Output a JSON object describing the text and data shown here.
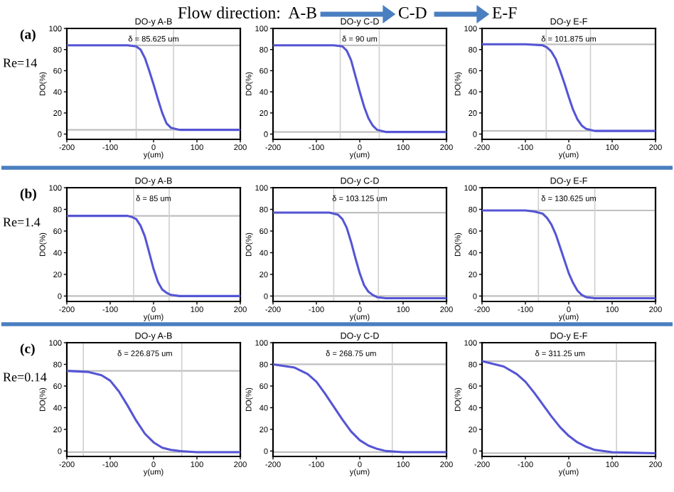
{
  "chart_data": [
    {
      "type": "line",
      "title": "DO-y A-B",
      "xlabel": "y(um)",
      "ylabel": "DO(%)",
      "color": "#5555d5",
      "xlim": [
        -200,
        200
      ],
      "ylim": [
        -5,
        100
      ],
      "xticks": [
        -200,
        -100,
        0,
        100,
        200
      ],
      "yticks": [
        0,
        20,
        40,
        60,
        80,
        100
      ],
      "x": [
        -200,
        -100,
        -60,
        -40,
        -30,
        -20,
        -10,
        0,
        10,
        20,
        30,
        40,
        60,
        100,
        200
      ],
      "values": [
        84,
        84,
        84,
        83,
        80,
        72,
        60,
        47,
        33,
        20,
        10,
        6,
        4,
        4,
        4
      ],
      "ref_lines": [
        {
          "axis": "y",
          "value": 84
        },
        {
          "axis": "y",
          "value": 4
        },
        {
          "axis": "x",
          "value": -40
        },
        {
          "axis": "x",
          "value": 46
        }
      ],
      "annotations": [
        "δ = 85.625 um",
        "Flow direction:  A-B",
        "C-D",
        "E-F",
        "(a)",
        "Re=14"
      ]
    },
    {
      "type": "line",
      "title": "DO-y C-D",
      "xlabel": "y(um)",
      "ylabel": "DO(%)",
      "color": "#5555d5",
      "xlim": [
        -200,
        200
      ],
      "ylim": [
        -5,
        100
      ],
      "xticks": [
        -200,
        -100,
        0,
        100,
        200
      ],
      "yticks": [
        0,
        20,
        40,
        60,
        80,
        100
      ],
      "x": [
        -200,
        -100,
        -60,
        -40,
        -30,
        -20,
        -10,
        0,
        10,
        20,
        30,
        40,
        60,
        100,
        200
      ],
      "values": [
        84,
        84,
        84,
        83,
        79,
        70,
        55,
        40,
        26,
        15,
        8,
        4,
        2,
        2,
        2
      ],
      "ref_lines": [
        {
          "axis": "y",
          "value": 84
        },
        {
          "axis": "y",
          "value": 2
        },
        {
          "axis": "x",
          "value": -45
        },
        {
          "axis": "x",
          "value": 45
        }
      ],
      "annotations": [
        "δ = 90 um"
      ]
    },
    {
      "type": "line",
      "title": "DO-y E-F",
      "xlabel": "y(um)",
      "ylabel": "DO(%)",
      "color": "#5555d5",
      "xlim": [
        -200,
        200
      ],
      "ylim": [
        -5,
        100
      ],
      "xticks": [
        -200,
        -100,
        0,
        100,
        200
      ],
      "yticks": [
        0,
        20,
        40,
        60,
        80,
        100
      ],
      "x": [
        -200,
        -100,
        -60,
        -50,
        -40,
        -30,
        -20,
        -10,
        0,
        10,
        20,
        30,
        40,
        60,
        100,
        200
      ],
      "values": [
        85,
        85,
        84,
        82,
        78,
        71,
        60,
        48,
        35,
        23,
        14,
        8,
        5,
        3,
        3,
        3
      ],
      "ref_lines": [
        {
          "axis": "y",
          "value": 85
        },
        {
          "axis": "y",
          "value": 3
        },
        {
          "axis": "x",
          "value": -52
        },
        {
          "axis": "x",
          "value": 50
        }
      ],
      "annotations": [
        "δ = 101.875 um"
      ]
    },
    {
      "type": "line",
      "title": "DO-y A-B",
      "xlabel": "y(um)",
      "ylabel": "DO(%)",
      "color": "#5555d5",
      "xlim": [
        -200,
        200
      ],
      "ylim": [
        -5,
        100
      ],
      "xticks": [
        -200,
        -100,
        0,
        100,
        200
      ],
      "yticks": [
        0,
        20,
        40,
        60,
        80,
        100
      ],
      "x": [
        -200,
        -100,
        -60,
        -50,
        -40,
        -30,
        -20,
        -10,
        0,
        10,
        20,
        30,
        40,
        60,
        100,
        200
      ],
      "values": [
        74,
        74,
        74,
        73,
        71,
        65,
        55,
        40,
        25,
        13,
        6,
        3,
        1,
        0,
        0,
        0
      ],
      "ref_lines": [
        {
          "axis": "y",
          "value": 74
        },
        {
          "axis": "y",
          "value": 0
        },
        {
          "axis": "x",
          "value": -46
        },
        {
          "axis": "x",
          "value": 36
        }
      ],
      "annotations": [
        "δ = 85 um",
        "(b)",
        "Re=1.4"
      ]
    },
    {
      "type": "line",
      "title": "DO-y C-D",
      "xlabel": "y(um)",
      "ylabel": "DO(%)",
      "color": "#5555d5",
      "xlim": [
        -200,
        200
      ],
      "ylim": [
        -5,
        100
      ],
      "xticks": [
        -200,
        -100,
        0,
        100,
        200
      ],
      "yticks": [
        0,
        20,
        40,
        60,
        80,
        100
      ],
      "x": [
        -200,
        -100,
        -70,
        -50,
        -40,
        -30,
        -20,
        -10,
        0,
        10,
        20,
        30,
        40,
        60,
        100,
        200
      ],
      "values": [
        77,
        77,
        77,
        75,
        71,
        63,
        50,
        35,
        21,
        10,
        4,
        1,
        -1,
        -2,
        -2,
        -2
      ],
      "ref_lines": [
        {
          "axis": "y",
          "value": 77
        },
        {
          "axis": "y",
          "value": 0
        },
        {
          "axis": "x",
          "value": -60
        },
        {
          "axis": "x",
          "value": 43
        }
      ],
      "annotations": [
        "δ = 103.125 um"
      ]
    },
    {
      "type": "line",
      "title": "DO-y E-F",
      "xlabel": "y(um)",
      "ylabel": "DO(%)",
      "color": "#5555d5",
      "xlim": [
        -200,
        200
      ],
      "ylim": [
        -5,
        100
      ],
      "xticks": [
        -200,
        -100,
        0,
        100,
        200
      ],
      "yticks": [
        0,
        20,
        40,
        60,
        80,
        100
      ],
      "x": [
        -200,
        -100,
        -80,
        -60,
        -50,
        -40,
        -30,
        -20,
        -10,
        0,
        10,
        20,
        30,
        40,
        60,
        100,
        200
      ],
      "values": [
        79,
        79,
        78,
        76,
        72,
        66,
        57,
        45,
        33,
        21,
        12,
        5,
        1,
        -1,
        -2,
        -2,
        -2
      ],
      "ref_lines": [
        {
          "axis": "y",
          "value": 79
        },
        {
          "axis": "y",
          "value": 0
        },
        {
          "axis": "x",
          "value": -70
        },
        {
          "axis": "x",
          "value": 60
        }
      ],
      "annotations": [
        "δ = 130.625 um"
      ]
    },
    {
      "type": "line",
      "title": "DO-y A-B",
      "xlabel": "y(um)",
      "ylabel": "DO(%)",
      "color": "#5555d5",
      "xlim": [
        -200,
        200
      ],
      "ylim": [
        -5,
        100
      ],
      "xticks": [
        -200,
        -100,
        0,
        100,
        200
      ],
      "yticks": [
        0,
        20,
        40,
        60,
        80,
        100
      ],
      "x": [
        -200,
        -150,
        -120,
        -100,
        -80,
        -60,
        -40,
        -20,
        0,
        20,
        40,
        60,
        100,
        200
      ],
      "values": [
        74,
        73,
        70,
        65,
        55,
        42,
        28,
        16,
        8,
        3,
        1,
        0,
        -1,
        -1
      ],
      "ref_lines": [
        {
          "axis": "y",
          "value": 74
        },
        {
          "axis": "y",
          "value": -1
        },
        {
          "axis": "x",
          "value": -162
        },
        {
          "axis": "x",
          "value": 65
        }
      ],
      "annotations": [
        "δ = 226.875 um",
        "(c)",
        "Re=0.14"
      ]
    },
    {
      "type": "line",
      "title": "DO-y C-D",
      "xlabel": "y(um)",
      "ylabel": "DO(%)",
      "color": "#5555d5",
      "xlim": [
        -200,
        200
      ],
      "ylim": [
        -5,
        100
      ],
      "xticks": [
        -200,
        -100,
        0,
        100,
        200
      ],
      "yticks": [
        0,
        20,
        40,
        60,
        80,
        100
      ],
      "x": [
        -200,
        -150,
        -120,
        -100,
        -80,
        -60,
        -40,
        -20,
        0,
        20,
        40,
        60,
        100,
        200
      ],
      "values": [
        80,
        77,
        71,
        64,
        53,
        41,
        29,
        18,
        10,
        5,
        2,
        0,
        -1,
        -1
      ],
      "ref_lines": [
        {
          "axis": "y",
          "value": 80
        },
        {
          "axis": "y",
          "value": -1
        },
        {
          "axis": "x",
          "value": 75
        }
      ],
      "annotations": [
        "δ = 268.75 um"
      ]
    },
    {
      "type": "line",
      "title": "DO-y E-F",
      "xlabel": "y(um)",
      "ylabel": "DO(%)",
      "color": "#5555d5",
      "xlim": [
        -200,
        200
      ],
      "ylim": [
        -5,
        100
      ],
      "xticks": [
        -200,
        -100,
        0,
        100,
        200
      ],
      "yticks": [
        0,
        20,
        40,
        60,
        80,
        100
      ],
      "x": [
        -200,
        -150,
        -120,
        -100,
        -80,
        -60,
        -40,
        -20,
        0,
        20,
        40,
        60,
        100,
        200
      ],
      "values": [
        83,
        78,
        71,
        64,
        54,
        43,
        32,
        22,
        14,
        8,
        4,
        1,
        -1,
        -2
      ],
      "ref_lines": [
        {
          "axis": "y",
          "value": 83
        },
        {
          "axis": "y",
          "value": -2
        },
        {
          "axis": "x",
          "value": 110
        }
      ],
      "annotations": [
        "δ = 311.25 um"
      ]
    }
  ]
}
